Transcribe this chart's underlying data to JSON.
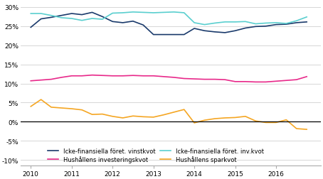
{
  "xlim": [
    2009.75,
    2017.1
  ],
  "ylim": [
    -0.115,
    0.315
  ],
  "yticks": [
    -0.1,
    -0.05,
    0.0,
    0.05,
    0.1,
    0.15,
    0.2,
    0.25,
    0.3
  ],
  "xticks": [
    2010,
    2011,
    2012,
    2013,
    2014,
    2015,
    2016
  ],
  "background_color": "#ffffff",
  "grid_color": "#d0d0d0",
  "series": {
    "vinstkvot": {
      "color": "#1a3a6b",
      "label": "Icke-finansiella föret. vinstkvot",
      "data_x": [
        2010.0,
        2010.25,
        2010.5,
        2010.75,
        2011.0,
        2011.25,
        2011.5,
        2011.75,
        2012.0,
        2012.25,
        2012.5,
        2012.75,
        2013.0,
        2013.25,
        2013.5,
        2013.75,
        2014.0,
        2014.25,
        2014.5,
        2014.75,
        2015.0,
        2015.25,
        2015.5,
        2015.75,
        2016.0,
        2016.25,
        2016.5,
        2016.75
      ],
      "data_y": [
        0.247,
        0.269,
        0.273,
        0.278,
        0.283,
        0.28,
        0.286,
        0.275,
        0.262,
        0.259,
        0.263,
        0.253,
        0.228,
        0.228,
        0.228,
        0.228,
        0.244,
        0.238,
        0.235,
        0.233,
        0.238,
        0.245,
        0.249,
        0.25,
        0.254,
        0.255,
        0.259,
        0.261
      ]
    },
    "inv_kvot": {
      "color": "#5acfcf",
      "label": "Icke-finansiella föret. inv.kvot",
      "data_x": [
        2010.0,
        2010.25,
        2010.5,
        2010.75,
        2011.0,
        2011.25,
        2011.5,
        2011.75,
        2012.0,
        2012.25,
        2012.5,
        2012.75,
        2013.0,
        2013.25,
        2013.5,
        2013.75,
        2014.0,
        2014.25,
        2014.5,
        2014.75,
        2015.0,
        2015.25,
        2015.5,
        2015.75,
        2016.0,
        2016.25,
        2016.5,
        2016.75
      ],
      "data_y": [
        0.283,
        0.283,
        0.278,
        0.272,
        0.27,
        0.265,
        0.27,
        0.268,
        0.284,
        0.285,
        0.287,
        0.286,
        0.285,
        0.286,
        0.287,
        0.285,
        0.259,
        0.254,
        0.258,
        0.261,
        0.261,
        0.262,
        0.256,
        0.258,
        0.259,
        0.257,
        0.264,
        0.274
      ]
    },
    "hush_inv": {
      "color": "#e8298a",
      "label": "Hushållens investeringskvot",
      "data_x": [
        2010.0,
        2010.25,
        2010.5,
        2010.75,
        2011.0,
        2011.25,
        2011.5,
        2011.75,
        2012.0,
        2012.25,
        2012.5,
        2012.75,
        2013.0,
        2013.25,
        2013.5,
        2013.75,
        2014.0,
        2014.25,
        2014.5,
        2014.75,
        2015.0,
        2015.25,
        2015.5,
        2015.75,
        2016.0,
        2016.25,
        2016.5,
        2016.75
      ],
      "data_y": [
        0.107,
        0.109,
        0.111,
        0.116,
        0.12,
        0.12,
        0.122,
        0.121,
        0.12,
        0.12,
        0.121,
        0.12,
        0.12,
        0.118,
        0.116,
        0.113,
        0.112,
        0.111,
        0.111,
        0.11,
        0.105,
        0.105,
        0.104,
        0.104,
        0.106,
        0.108,
        0.11,
        0.118
      ]
    },
    "hush_spar": {
      "color": "#f5a623",
      "label": "Hushållens sparkvot",
      "data_x": [
        2010.0,
        2010.25,
        2010.5,
        2010.75,
        2011.0,
        2011.25,
        2011.5,
        2011.75,
        2012.0,
        2012.25,
        2012.5,
        2012.75,
        2013.0,
        2013.25,
        2013.5,
        2013.75,
        2014.0,
        2014.25,
        2014.5,
        2014.75,
        2015.0,
        2015.25,
        2015.5,
        2015.75,
        2016.0,
        2016.25,
        2016.5,
        2016.75
      ],
      "data_y": [
        0.04,
        0.058,
        0.038,
        0.036,
        0.034,
        0.031,
        0.019,
        0.02,
        0.014,
        0.01,
        0.015,
        0.013,
        0.012,
        0.018,
        0.025,
        0.032,
        -0.003,
        0.004,
        0.008,
        0.01,
        0.011,
        0.014,
        0.002,
        -0.002,
        -0.002,
        0.005,
        -0.018,
        -0.02
      ]
    }
  },
  "legend_order": [
    0,
    2,
    1,
    3
  ],
  "zero_line_color": "#000000",
  "tick_fontsize": 6.5,
  "linewidth": 1.2,
  "legend_fontsize": 6.0
}
